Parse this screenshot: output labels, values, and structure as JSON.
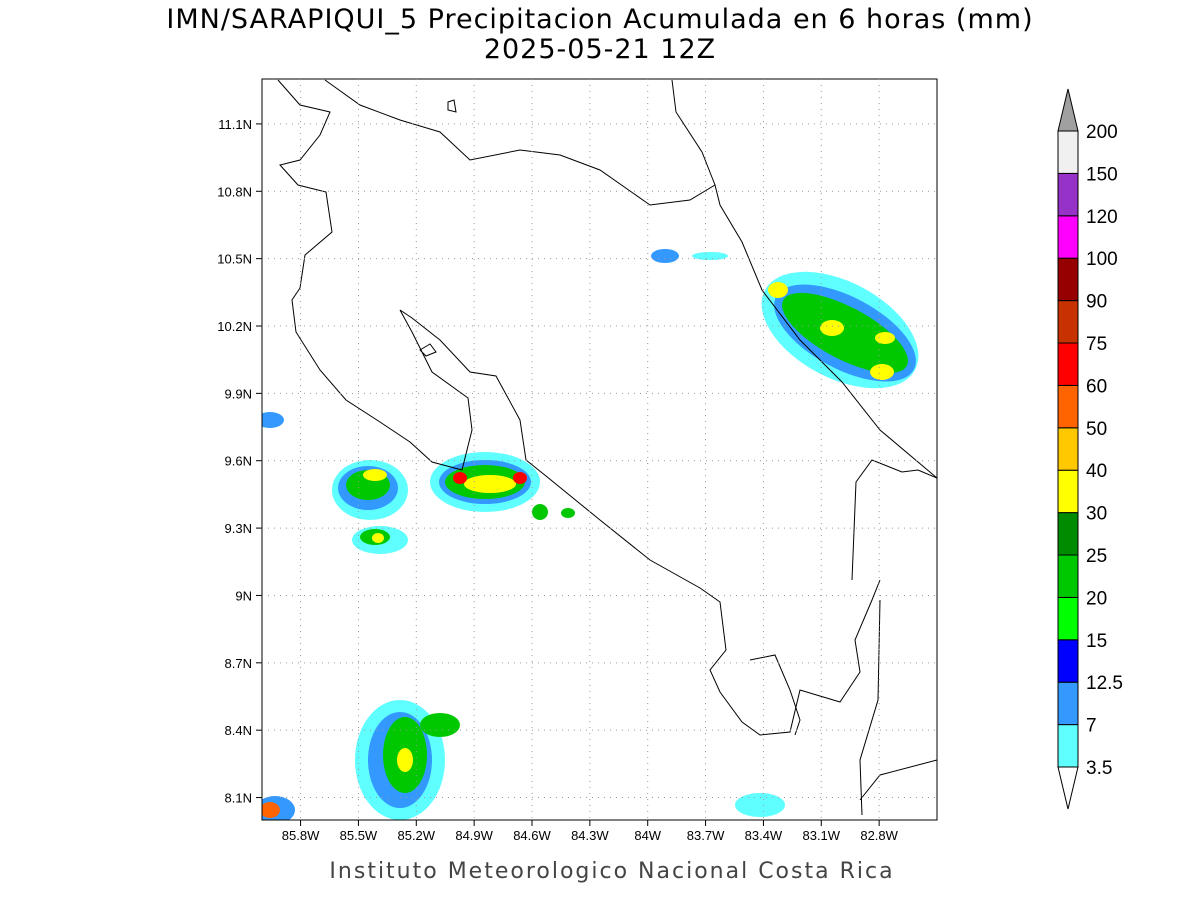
{
  "title": "IMN/SARAPIQUI_5 Precipitacion Acumulada en 6 horas (mm)",
  "subtitle": "2025-05-21 12Z",
  "map": {
    "xlim": [
      -86.0,
      -82.5
    ],
    "ylim": [
      8.0,
      11.3
    ],
    "grid": true,
    "xticks": [
      {
        "value": -85.8,
        "label": "85.8W"
      },
      {
        "value": -85.5,
        "label": "85.5W"
      },
      {
        "value": -85.2,
        "label": "85.2W"
      },
      {
        "value": -84.9,
        "label": "84.9W"
      },
      {
        "value": -84.6,
        "label": "84.6W"
      },
      {
        "value": -84.3,
        "label": "84.3W"
      },
      {
        "value": -84.0,
        "label": "84W"
      },
      {
        "value": -83.7,
        "label": "83.7W"
      },
      {
        "value": -83.4,
        "label": "83.4W"
      },
      {
        "value": -83.1,
        "label": "83.1W"
      },
      {
        "value": -82.8,
        "label": "82.8W"
      }
    ],
    "yticks": [
      {
        "value": 8.1,
        "label": "8.1N"
      },
      {
        "value": 8.4,
        "label": "8.4N"
      },
      {
        "value": 8.7,
        "label": "8.7N"
      },
      {
        "value": 9.0,
        "label": "9N"
      },
      {
        "value": 9.3,
        "label": "9.3N"
      },
      {
        "value": 9.6,
        "label": "9.6N"
      },
      {
        "value": 9.9,
        "label": "9.9N"
      },
      {
        "value": 10.2,
        "label": "10.2N"
      },
      {
        "value": 10.5,
        "label": "10.5N"
      },
      {
        "value": 10.8,
        "label": "10.8N"
      },
      {
        "value": 11.1,
        "label": "11.1N"
      }
    ]
  },
  "colorbar": {
    "levels": [
      3.5,
      7,
      12.5,
      15,
      20,
      25,
      30,
      40,
      50,
      60,
      75,
      90,
      100,
      120,
      150,
      200
    ],
    "colors": [
      "#ffffff",
      "#60ffff",
      "#3399ff",
      "#0000ff",
      "#00ff00",
      "#00c800",
      "#008c00",
      "#ffff00",
      "#ffc800",
      "#ff6400",
      "#ff0000",
      "#c83200",
      "#960000",
      "#ff00ff",
      "#9632c8",
      "#f0f0f0",
      "#a0a0a0"
    ]
  },
  "footer": "Instituto Meteorologico Nacional Costa Rica"
}
